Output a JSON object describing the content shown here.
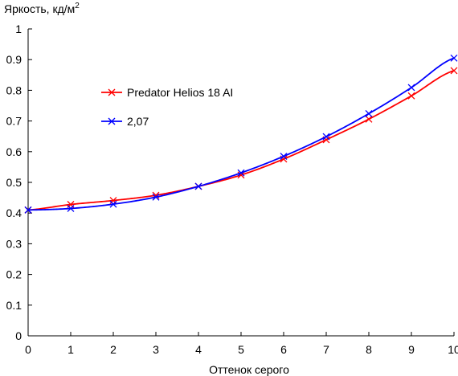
{
  "chart_data": {
    "type": "line",
    "title": "",
    "xlabel": "Оттенок серого",
    "ylabel_main": "Яркость, кд/м",
    "ylabel_superscript": "2",
    "xlim": [
      0,
      10
    ],
    "ylim": [
      0,
      1
    ],
    "x_ticks": [
      "0",
      "1",
      "2",
      "3",
      "4",
      "5",
      "6",
      "7",
      "8",
      "9",
      "10"
    ],
    "y_ticks": [
      "0",
      "0.1",
      "0.2",
      "0.3",
      "0.4",
      "0.5",
      "0.6",
      "0.7",
      "0.8",
      "0.9",
      "1"
    ],
    "grid": false,
    "legend_position": "upper-left",
    "marker": "x",
    "series": [
      {
        "name": "Predator Helios 18 AI",
        "color": "#ff0000",
        "x": [
          0,
          1,
          2,
          3,
          4,
          5,
          6,
          7,
          8,
          9,
          10
        ],
        "y": [
          0.41,
          0.428,
          0.441,
          0.458,
          0.487,
          0.524,
          0.576,
          0.639,
          0.706,
          0.782,
          0.864
        ]
      },
      {
        "name": "2,07",
        "color": "#0000ff",
        "x": [
          0,
          1,
          2,
          3,
          4,
          5,
          6,
          7,
          8,
          9,
          10
        ],
        "y": [
          0.41,
          0.415,
          0.429,
          0.452,
          0.487,
          0.531,
          0.585,
          0.649,
          0.724,
          0.809,
          0.905
        ]
      }
    ]
  }
}
